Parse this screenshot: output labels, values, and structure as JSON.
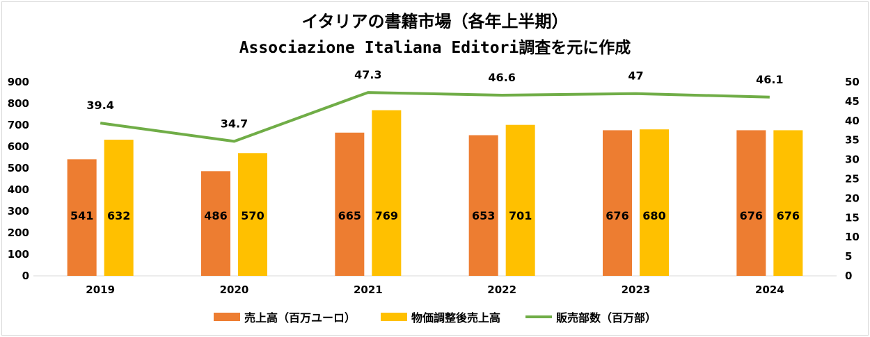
{
  "chart_data": {
    "type": "bar",
    "title": "イタリアの書籍市場（各年上半期）",
    "subtitle": "Associazione Italiana Editori調査を元に作成",
    "categories": [
      "2019",
      "2020",
      "2021",
      "2022",
      "2023",
      "2024"
    ],
    "series": [
      {
        "name": "売上高（百万ユーロ）",
        "type": "bar",
        "axis": "left",
        "color": "#ED7D31",
        "values": [
          541,
          486,
          665,
          653,
          676,
          676
        ]
      },
      {
        "name": "物価調整後売上高",
        "type": "bar",
        "axis": "left",
        "color": "#FFC000",
        "values": [
          632,
          570,
          769,
          701,
          680,
          676
        ]
      },
      {
        "name": "販売部数（百万部）",
        "type": "line",
        "axis": "right",
        "color": "#70AD47",
        "values": [
          39.4,
          34.7,
          47.3,
          46.6,
          47,
          46.1
        ]
      }
    ],
    "left_axis": {
      "ylim": [
        0,
        900
      ],
      "ticks": [
        "0",
        "100",
        "200",
        "300",
        "400",
        "500",
        "600",
        "700",
        "800",
        "900"
      ]
    },
    "right_axis": {
      "ylim": [
        0,
        50
      ],
      "ticks": [
        "0",
        "5",
        "10",
        "15",
        "20",
        "25",
        "30",
        "35",
        "40",
        "45",
        "50"
      ]
    },
    "grid": false,
    "legend_position": "bottom"
  }
}
